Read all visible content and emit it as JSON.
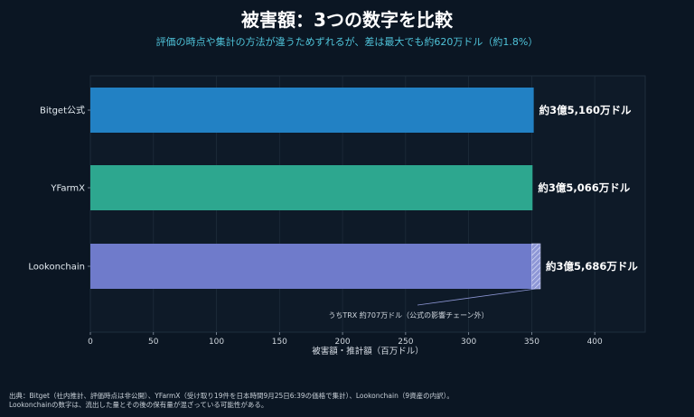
{
  "header": {
    "title": "被害額：3つの数字を比較",
    "subtitle": "評価の時点や集計の方法が違うためずれるが、差は最大でも約620万ドル（約1.8%）"
  },
  "chart_data": {
    "type": "bar",
    "orientation": "horizontal",
    "categories": [
      "Bitget公式",
      "YFarmX",
      "Lookonchain"
    ],
    "values": [
      351.6,
      350.66,
      356.86
    ],
    "value_labels": [
      "約3億5,160万ドル",
      "約3億5,066万ドル",
      "約3億5,686万ドル"
    ],
    "colors": [
      "#2281c4",
      "#2da78f",
      "#6f7bcb"
    ],
    "segment": {
      "category": "Lookonchain",
      "from": 350.0,
      "to": 356.86,
      "pattern": "hatched",
      "annotation": "うちTRX 約707万ドル（公式の影響チェーン外）"
    },
    "xlabel": "被害額・推計額（百万ドル）",
    "ylabel": "",
    "xlim": [
      0,
      440
    ],
    "xticks": [
      0,
      50,
      100,
      150,
      200,
      250,
      300,
      350,
      400
    ],
    "grid": true
  },
  "footnote": {
    "line1": "出典：Bitget（社内推計、評価時点は非公開）、YFarmX（受け取り19件を日本時間9月25日6:39の価格で集計）、Lookonchain（9資産の内訳）。",
    "line2": "Lookonchainの数字は、流出した量とその後の保有量が混ざっている可能性がある。"
  },
  "colors": {
    "background": "#0b1623",
    "plot_background": "#0e1a28",
    "subtitle": "#4fc3d9",
    "grid": "#1e2c3b"
  }
}
